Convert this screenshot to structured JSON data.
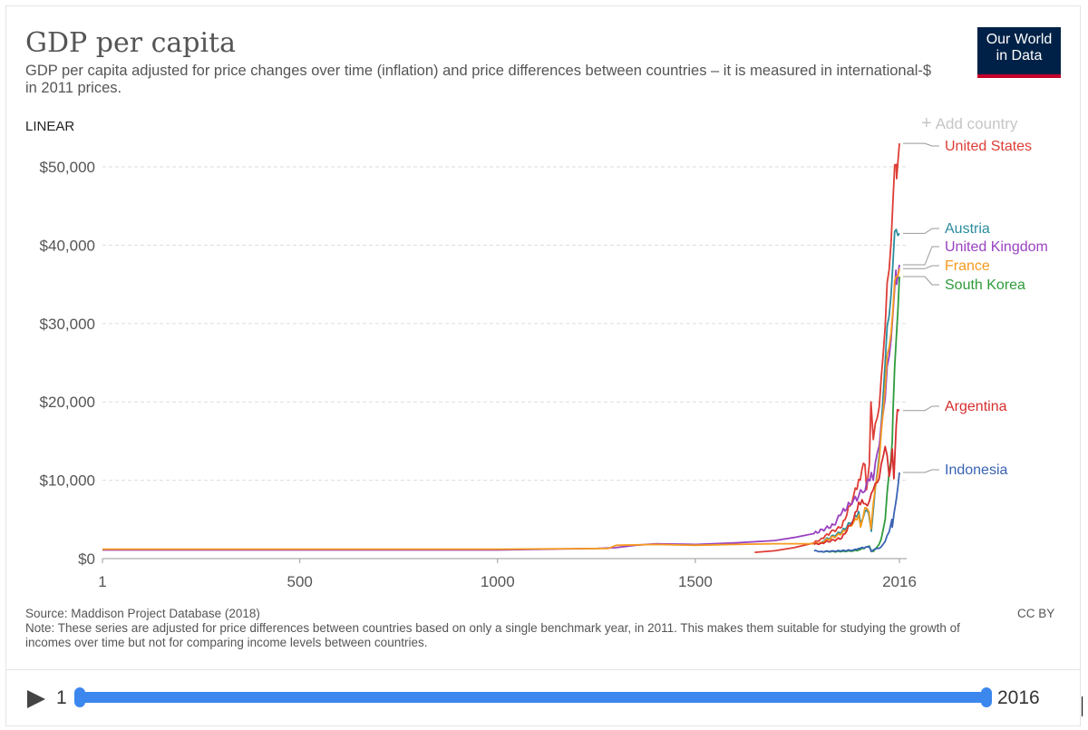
{
  "header": {
    "title": "GDP per capita",
    "subtitle": "GDP per capita adjusted for price changes over time (inflation) and price differences between countries – it is measured in international-$ in 2011 prices.",
    "logo_line1": "Our World",
    "logo_line2": "in Data"
  },
  "controls": {
    "scale_label": "LINEAR",
    "add_country_label": "Add country"
  },
  "footer": {
    "source": "Source: Maddison Project Database (2018)",
    "note": "Note: These series are adjusted for price differences between countries based on only a single benchmark year, in 2011. This makes them suitable for studying the growth of incomes over time but not for comparing income levels between countries.",
    "license": "CC BY"
  },
  "timeline": {
    "start": "1",
    "end": "2016"
  },
  "colors": {
    "united_states": "#de3d36",
    "austria": "#2b8d9e",
    "united_kingdom": "#9a42c0",
    "france": "#f59a1f",
    "south_korea": "#2f9b3b",
    "argentina": "#d62e2e",
    "indonesia": "#3a63b4",
    "accent": "#3b87ee",
    "logo_bg": "#002147",
    "logo_bar": "#c4002a"
  },
  "chart_data": {
    "type": "line",
    "title": "GDP per capita",
    "xlabel": "",
    "ylabel": "",
    "xlim": [
      1,
      2016
    ],
    "ylim": [
      0,
      53000
    ],
    "x_ticks": [
      {
        "value": 1,
        "label": "1"
      },
      {
        "value": 500,
        "label": "500"
      },
      {
        "value": 1000,
        "label": "1000"
      },
      {
        "value": 1500,
        "label": "1500"
      },
      {
        "value": 2016,
        "label": "2016"
      }
    ],
    "y_ticks": [
      {
        "value": 0,
        "label": "$0"
      },
      {
        "value": 10000,
        "label": "$10,000"
      },
      {
        "value": 20000,
        "label": "$20,000"
      },
      {
        "value": 30000,
        "label": "$30,000"
      },
      {
        "value": 40000,
        "label": "$40,000"
      },
      {
        "value": 50000,
        "label": "$50,000"
      }
    ],
    "grid": true,
    "series": [
      {
        "name": "United States",
        "color_key": "united_states",
        "x": [
          1650,
          1700,
          1750,
          1800,
          1820,
          1850,
          1870,
          1900,
          1913,
          1929,
          1933,
          1940,
          1944,
          1950,
          1960,
          1970,
          1980,
          1990,
          2000,
          2008,
          2009,
          2016
        ],
        "y": [
          800,
          1000,
          1400,
          2000,
          2600,
          3600,
          4000,
          8000,
          10100,
          12000,
          8800,
          12000,
          20000,
          15200,
          18000,
          23000,
          29600,
          36900,
          45900,
          50300,
          48500,
          53000
        ]
      },
      {
        "name": "Austria",
        "color_key": "austria",
        "x": [
          1820,
          1870,
          1900,
          1913,
          1918,
          1929,
          1938,
          1945,
          1950,
          1960,
          1970,
          1980,
          1990,
          2000,
          2008,
          2016
        ],
        "y": [
          2200,
          3400,
          5000,
          6000,
          4500,
          6000,
          5800,
          3500,
          6200,
          11000,
          17000,
          25000,
          31000,
          38000,
          42000,
          41500
        ]
      },
      {
        "name": "United Kingdom",
        "color_key": "united_kingdom",
        "x": [
          1,
          1000,
          1252,
          1300,
          1348,
          1400,
          1500,
          1600,
          1700,
          1750,
          1800,
          1850,
          1870,
          1900,
          1913,
          1918,
          1929,
          1945,
          1950,
          1960,
          1970,
          1980,
          1990,
          2000,
          2007,
          2009,
          2016
        ],
        "y": [
          1100,
          1100,
          1300,
          1400,
          1700,
          1900,
          1800,
          2000,
          2300,
          2700,
          3200,
          4300,
          5800,
          7500,
          8000,
          8800,
          8600,
          11000,
          10000,
          13500,
          17000,
          20500,
          25800,
          31500,
          36800,
          35000,
          37500
        ]
      },
      {
        "name": "France",
        "color_key": "france",
        "x": [
          1,
          1000,
          1280,
          1300,
          1400,
          1500,
          1600,
          1700,
          1750,
          1800,
          1820,
          1870,
          1900,
          1913,
          1918,
          1929,
          1939,
          1944,
          1950,
          1960,
          1970,
          1980,
          1990,
          2000,
          2008,
          2016
        ],
        "y": [
          1200,
          1200,
          1300,
          1700,
          1800,
          1700,
          1800,
          1900,
          1900,
          1900,
          2100,
          3200,
          4600,
          5600,
          4000,
          6500,
          6000,
          3800,
          7000,
          10500,
          16000,
          22000,
          27000,
          32000,
          36000,
          37000
        ]
      },
      {
        "name": "South Korea",
        "color_key": "south_korea",
        "x": [
          1820,
          1870,
          1900,
          1913,
          1940,
          1945,
          1950,
          1953,
          1960,
          1970,
          1980,
          1990,
          1998,
          2000,
          2008,
          2016
        ],
        "y": [
          900,
          900,
          1000,
          1100,
          1600,
          1000,
          900,
          1100,
          1500,
          2500,
          5000,
          11000,
          15000,
          19000,
          28000,
          36000
        ]
      },
      {
        "name": "Argentina",
        "color_key": "argentina",
        "x": [
          1800,
          1820,
          1870,
          1900,
          1913,
          1930,
          1940,
          1950,
          1960,
          1970,
          1980,
          1990,
          1998,
          2002,
          2008,
          2011,
          2016
        ],
        "y": [
          1800,
          2000,
          2600,
          5000,
          7200,
          7000,
          7300,
          8800,
          9700,
          12000,
          14300,
          10500,
          14000,
          10200,
          17000,
          19000,
          18900
        ]
      },
      {
        "name": "Indonesia",
        "color_key": "indonesia",
        "x": [
          1800,
          1820,
          1870,
          1900,
          1913,
          1940,
          1945,
          1950,
          1960,
          1970,
          1980,
          1990,
          1997,
          1998,
          2008,
          2016
        ],
        "y": [
          1000,
          900,
          1000,
          1100,
          1300,
          1500,
          900,
          1100,
          1300,
          1500,
          2200,
          3400,
          5000,
          4000,
          7500,
          11000
        ]
      }
    ]
  }
}
